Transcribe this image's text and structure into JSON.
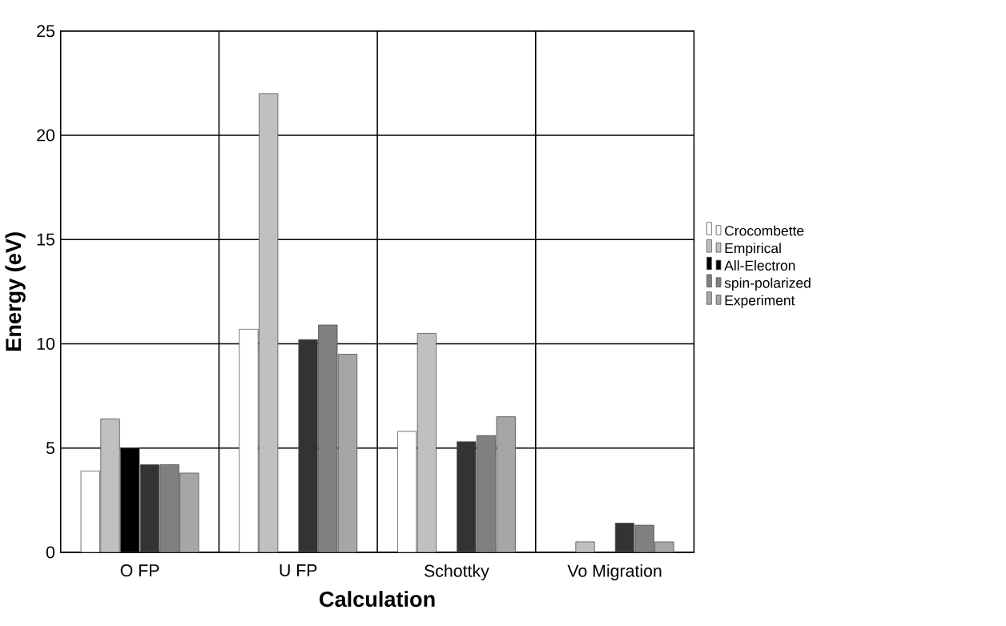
{
  "chart_data": {
    "type": "bar",
    "xlabel": "Calculation",
    "ylabel": "Energy (eV)",
    "categories": [
      "O FP",
      "U FP",
      "Schottky",
      "Vo Migration"
    ],
    "series": [
      {
        "name": "Crocombette",
        "color": "#ffffff",
        "values": [
          3.9,
          10.7,
          5.8,
          null
        ]
      },
      {
        "name": "Empirical",
        "color": "#c0c0c0",
        "values": [
          6.4,
          22.0,
          10.5,
          0.5
        ]
      },
      {
        "name": "All-Electron",
        "color": "#000000",
        "values": [
          5.0,
          null,
          null,
          null
        ]
      },
      {
        "color": "#333333",
        "values": [
          4.2,
          10.2,
          5.3,
          1.4
        ]
      },
      {
        "name": "spin-polarized",
        "color": "#808080",
        "values": [
          4.2,
          10.9,
          5.6,
          1.3
        ]
      },
      {
        "name": "Experiment",
        "color": "#a6a6a6",
        "values": [
          3.8,
          9.5,
          6.5,
          0.5
        ]
      }
    ],
    "ylim": [
      0,
      25
    ],
    "yticks": [
      0,
      5,
      10,
      15,
      20,
      25
    ],
    "grid": true,
    "legend": "right"
  }
}
